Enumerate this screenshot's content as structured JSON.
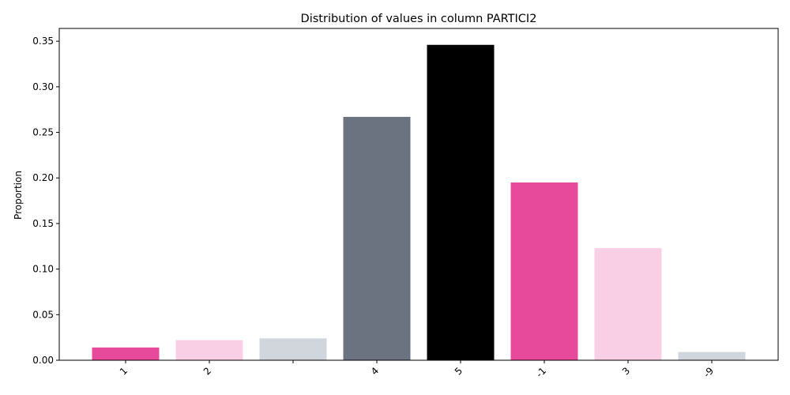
{
  "chart_data": {
    "type": "bar",
    "title": "Distribution of values in column PARTICI2",
    "xlabel": "",
    "ylabel": "Proportion",
    "categories": [
      "1",
      "2",
      "",
      "4",
      "5",
      "-1",
      "3",
      "-9"
    ],
    "values": [
      0.014,
      0.022,
      0.024,
      0.267,
      0.346,
      0.195,
      0.123,
      0.009
    ],
    "colors": [
      "#e84a9b",
      "#f9cfe6",
      "#d1d5dc",
      "#6b7280",
      "#000000",
      "#e84a9b",
      "#f9cfe6",
      "#d1d5dc"
    ],
    "yticks": [
      "0.00",
      "0.05",
      "0.10",
      "0.15",
      "0.20",
      "0.25",
      "0.30",
      "0.35"
    ],
    "ylim": [
      0,
      0.364
    ],
    "grid": false,
    "legend": "none"
  }
}
